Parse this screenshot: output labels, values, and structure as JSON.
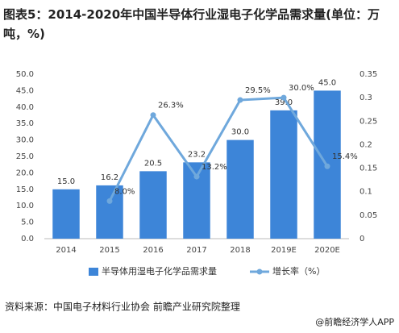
{
  "chart_data": {
    "type": "bar_line",
    "title": "图表5：2014-2020年中国半导体行业湿电子化学品需求量(单位：万吨，%)",
    "categories": [
      "2014",
      "2015",
      "2016",
      "2017",
      "2018",
      "2019E",
      "2020E"
    ],
    "series": [
      {
        "name": "半导体用湿电子化学品需求量",
        "type": "bar",
        "color": "#3d85d8",
        "values": [
          15,
          16.2,
          20.5,
          23.2,
          30,
          39,
          45
        ],
        "value_labels": [
          "15.0",
          "16.2",
          "20.5",
          "23.2",
          "30.0",
          "39.0",
          "45.0"
        ]
      },
      {
        "name": "增长率（%）",
        "type": "line",
        "axis": "y2",
        "color": "#6fa8dc",
        "values": [
          null,
          0.08,
          0.263,
          0.132,
          0.295,
          0.3,
          0.154
        ],
        "value_labels": [
          null,
          "8.0%",
          "26.3%",
          "13.2%",
          "29.5%",
          "30.0%",
          "15.4%"
        ]
      }
    ],
    "ylim": [
      0,
      50
    ],
    "yticks": [
      {
        "value": 0,
        "label": "0.0"
      },
      {
        "value": 5,
        "label": "5.0"
      },
      {
        "value": 10,
        "label": "10.0"
      },
      {
        "value": 15,
        "label": "15.0"
      },
      {
        "value": 20,
        "label": "20.0"
      },
      {
        "value": 25,
        "label": "25.0"
      },
      {
        "value": 30,
        "label": "30.0"
      },
      {
        "value": 35,
        "label": "35.0"
      },
      {
        "value": 40,
        "label": "40.0"
      },
      {
        "value": 45,
        "label": "45.0"
      },
      {
        "value": 50,
        "label": "50.0"
      }
    ],
    "y2lim": [
      0,
      0.35
    ],
    "y2ticks": [
      0,
      0.05,
      0.1,
      0.15,
      0.2,
      0.25,
      0.3,
      0.35
    ],
    "grid": false,
    "legend": "bottom",
    "source": "资料来源：中国电子材料行业协会 前瞻产业研究院整理",
    "brand": "@前瞻经济学人APP"
  }
}
